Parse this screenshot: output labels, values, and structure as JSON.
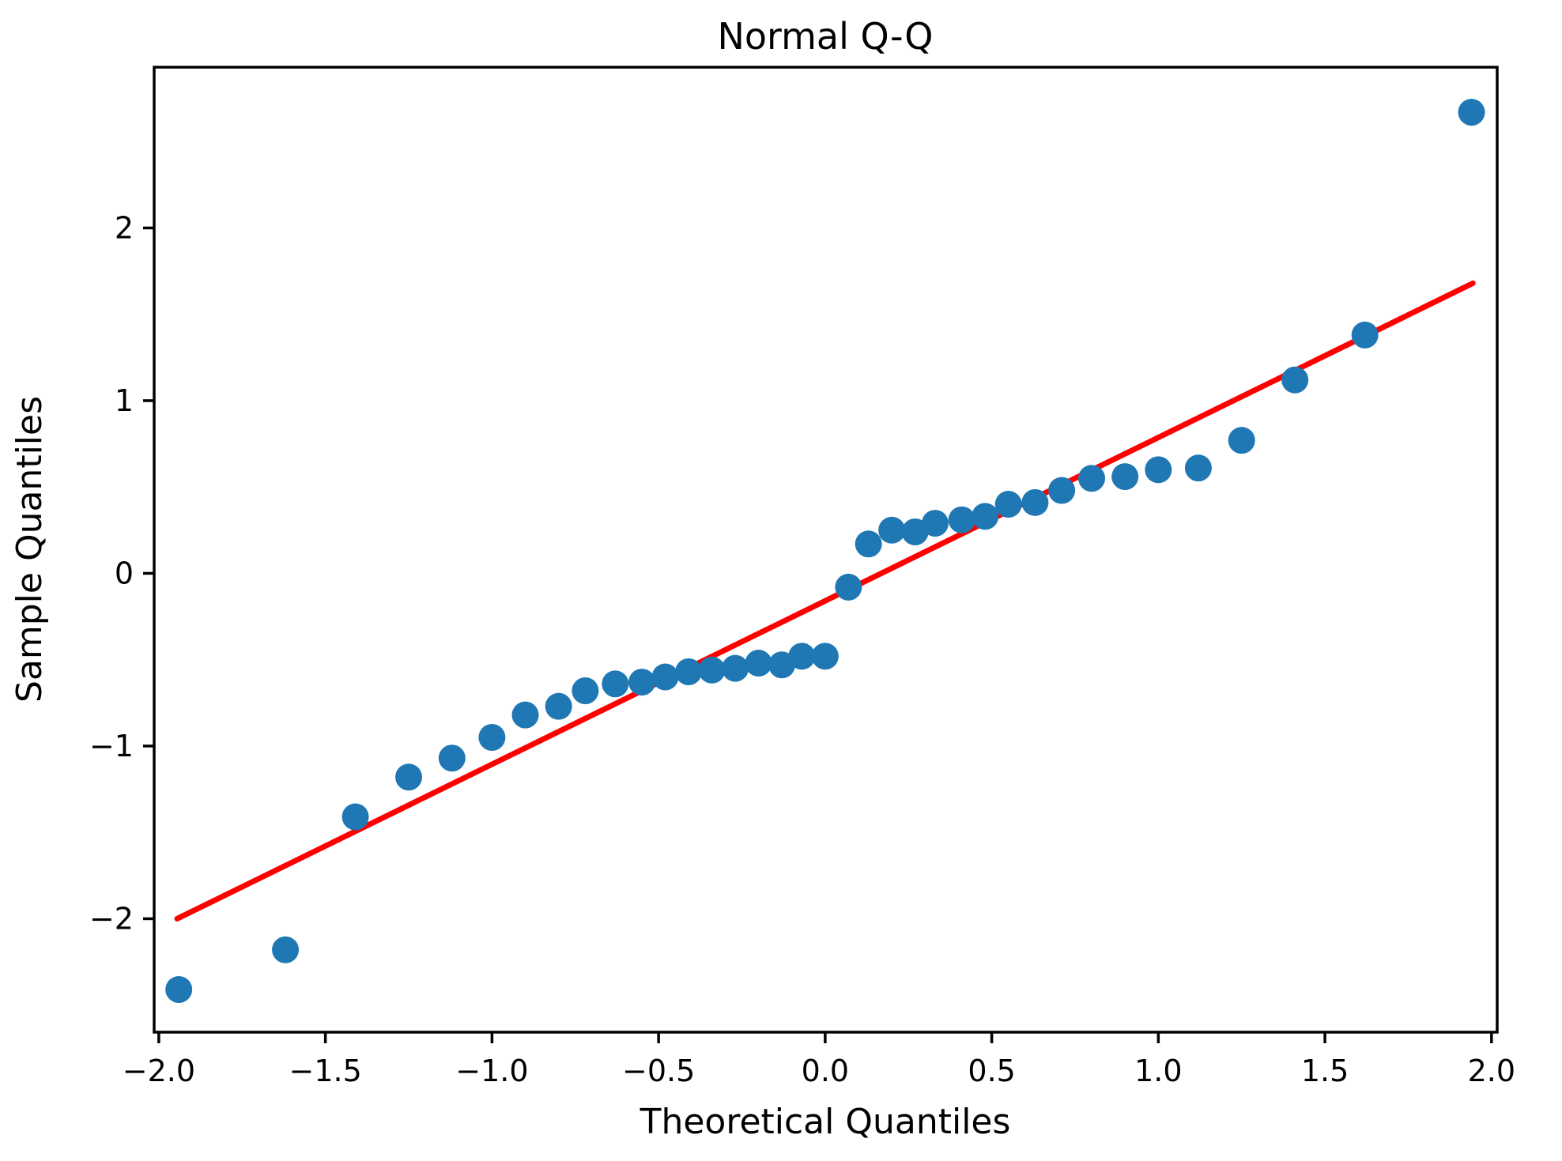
{
  "figure": {
    "title": "Normal Q-Q",
    "xlabel": "Theoretical Quantiles",
    "ylabel": "Sample Quantiles"
  },
  "chart_data": {
    "type": "scatter",
    "title": "Normal Q-Q",
    "xlabel": "Theoretical Quantiles",
    "ylabel": "Sample Quantiles",
    "xlim": [
      -2.014,
      2.017
    ],
    "ylim": [
      -2.657,
      2.931
    ],
    "grid": false,
    "legend": null,
    "xticks": [
      -2.0,
      -1.5,
      -1.0,
      -0.5,
      0.0,
      0.5,
      1.0,
      1.5,
      2.0
    ],
    "xtick_labels": [
      "−2.0",
      "−1.5",
      "−1.0",
      "−0.5",
      "0.0",
      "0.5",
      "1.0",
      "1.5",
      "2.0"
    ],
    "yticks": [
      -2,
      -1,
      0,
      1,
      2
    ],
    "ytick_labels": [
      "−2",
      "−1",
      "0",
      "1",
      "2"
    ],
    "marker_color": "#1f77b4",
    "line_color": "#ff0000",
    "axis_color": "#000000",
    "series": [
      {
        "name": "sample-points",
        "type": "scatter",
        "points": [
          [
            -1.94,
            -2.41
          ],
          [
            -1.62,
            -2.18
          ],
          [
            -1.41,
            -1.41
          ],
          [
            -1.25,
            -1.18
          ],
          [
            -1.12,
            -1.07
          ],
          [
            -1.0,
            -0.95
          ],
          [
            -0.9,
            -0.82
          ],
          [
            -0.8,
            -0.77
          ],
          [
            -0.72,
            -0.68
          ],
          [
            -0.63,
            -0.64
          ],
          [
            -0.55,
            -0.63
          ],
          [
            -0.48,
            -0.6
          ],
          [
            -0.41,
            -0.57
          ],
          [
            -0.34,
            -0.56
          ],
          [
            -0.27,
            -0.55
          ],
          [
            -0.2,
            -0.52
          ],
          [
            -0.13,
            -0.53
          ],
          [
            -0.07,
            -0.48
          ],
          [
            0.0,
            -0.48
          ],
          [
            0.07,
            -0.08
          ],
          [
            0.13,
            0.17
          ],
          [
            0.2,
            0.25
          ],
          [
            0.27,
            0.24
          ],
          [
            0.33,
            0.29
          ],
          [
            0.41,
            0.31
          ],
          [
            0.48,
            0.33
          ],
          [
            0.55,
            0.4
          ],
          [
            0.63,
            0.41
          ],
          [
            0.71,
            0.48
          ],
          [
            0.8,
            0.55
          ],
          [
            0.9,
            0.56
          ],
          [
            1.0,
            0.6
          ],
          [
            1.12,
            0.61
          ],
          [
            1.25,
            0.77
          ],
          [
            1.41,
            1.12
          ],
          [
            1.62,
            1.38
          ],
          [
            1.94,
            2.67
          ]
        ]
      },
      {
        "name": "reference-line",
        "type": "line",
        "points": [
          [
            -1.945,
            -2.0
          ],
          [
            1.944,
            1.68
          ]
        ]
      }
    ]
  }
}
